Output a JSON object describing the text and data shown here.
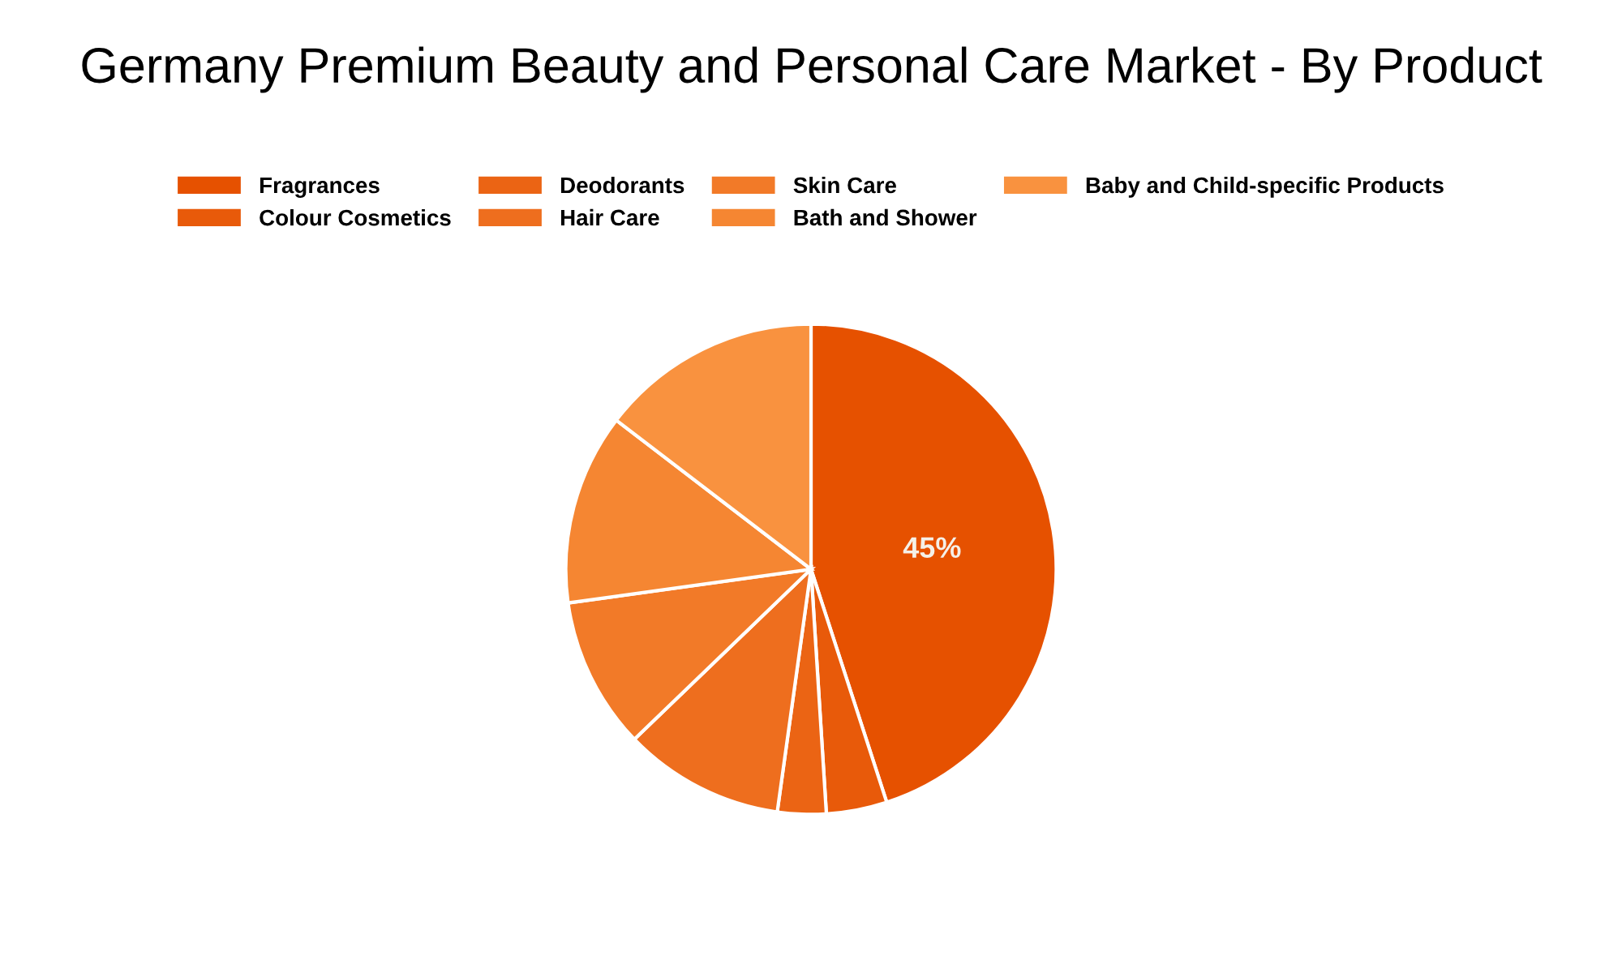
{
  "chart_data": {
    "type": "pie",
    "title": "Germany Premium Beauty and Personal Care Market - By Product",
    "categories": [
      "Fragrances",
      "Colour Cosmetics",
      "Deodorants",
      "Hair Care",
      "Skin Care",
      "Bath and Shower",
      "Baby and Child-specific Products"
    ],
    "values": [
      45,
      4,
      3.2,
      10.6,
      10,
      12.6,
      14.6
    ],
    "colors": [
      "#e65100",
      "#e85a0a",
      "#eb6414",
      "#ee6e1e",
      "#f27a28",
      "#f58632",
      "#f9923f"
    ],
    "value_labels": [
      "45%",
      null,
      null,
      null,
      null,
      null,
      null
    ],
    "legend": "top"
  }
}
